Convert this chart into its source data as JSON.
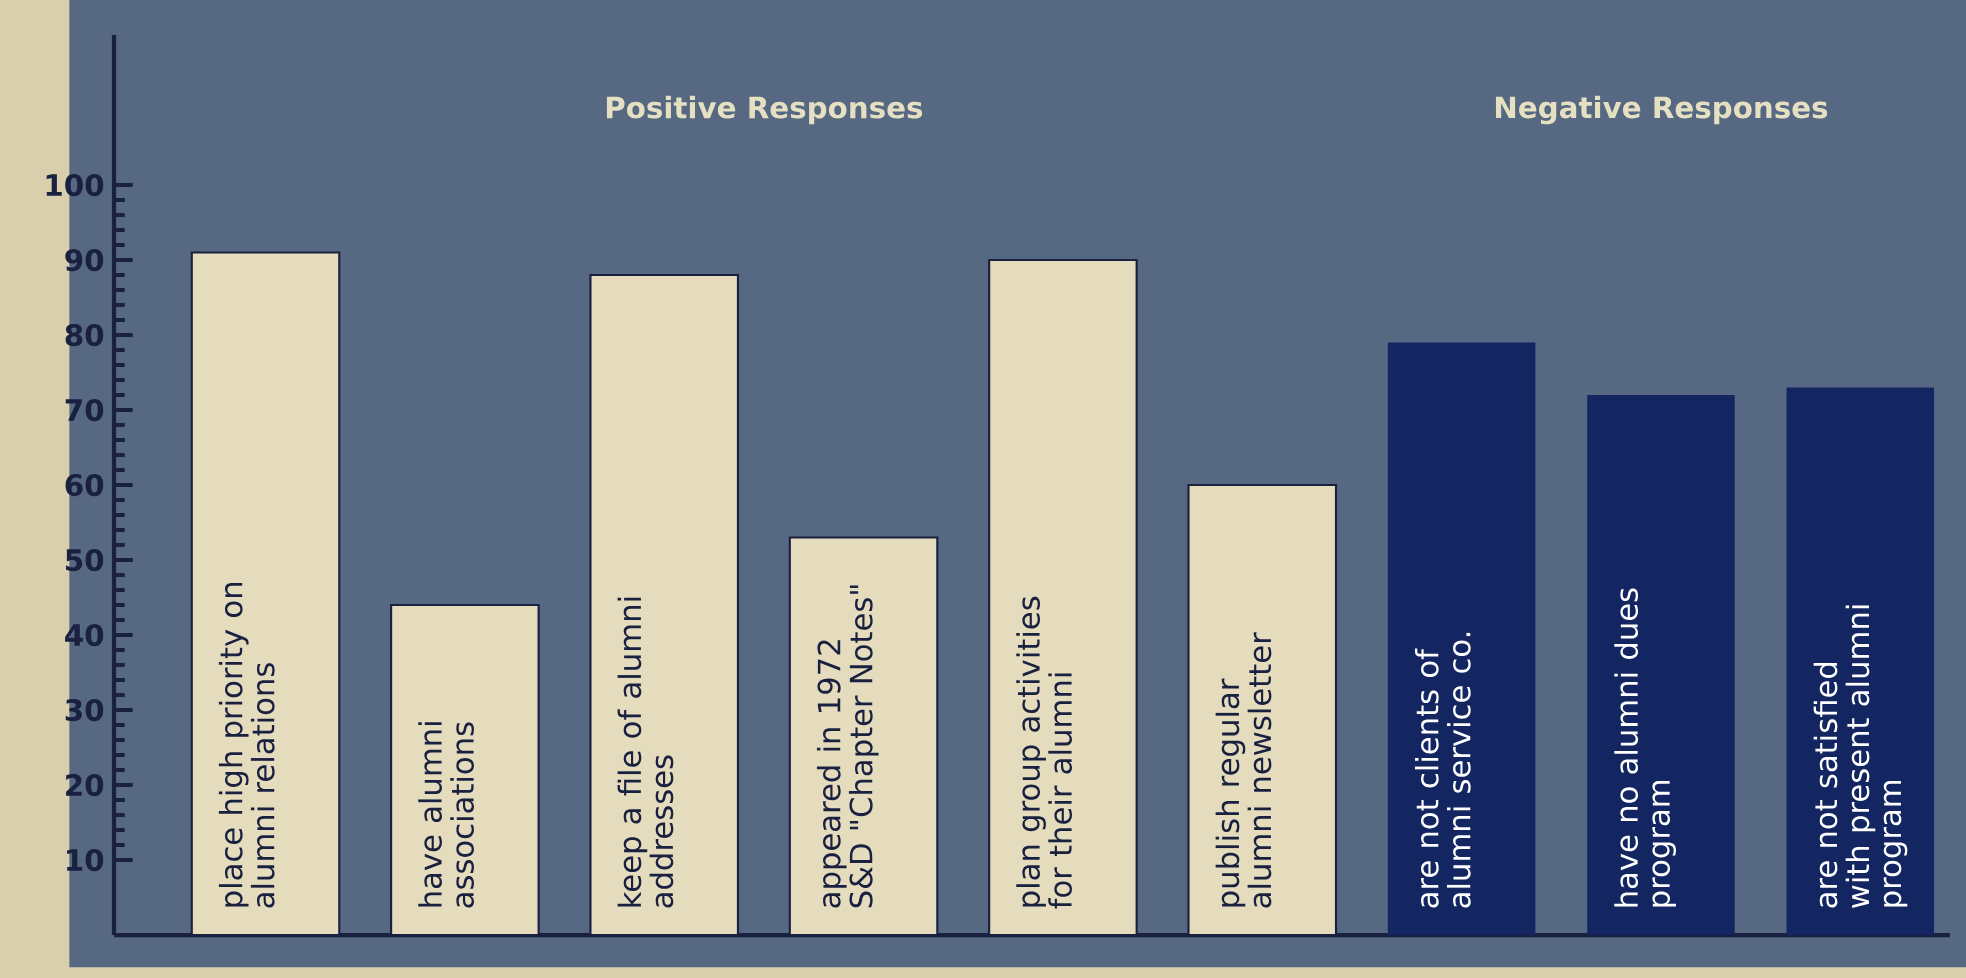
{
  "chart_data": {
    "type": "bar",
    "categories": [
      "place high priority on alumni relations",
      "have alumni associations",
      "keep a file of alumni addresses",
      "appeared in 1972 S&D \"Chapter Notes\"",
      "plan group activities for their alumni",
      "publish regular alumni newsletter",
      "are not clients of alumni service co.",
      "have no alumni dues program",
      "are not satisfied with present alumni program"
    ],
    "values": [
      91,
      44,
      88,
      53,
      90,
      60,
      79,
      72,
      73
    ],
    "colors": [
      "#e4dcbc",
      "#e4dcbc",
      "#e4dcbc",
      "#e4dcbc",
      "#e4dcbc",
      "#e4dcbc",
      "#142661",
      "#142661",
      "#142661"
    ],
    "ylim": [
      0,
      120
    ],
    "yticks": [
      10,
      20,
      30,
      40,
      50,
      60,
      70,
      80,
      90,
      100
    ],
    "annotations": [
      "Positive Responses",
      "Negative Responses"
    ],
    "grid": false
  }
}
